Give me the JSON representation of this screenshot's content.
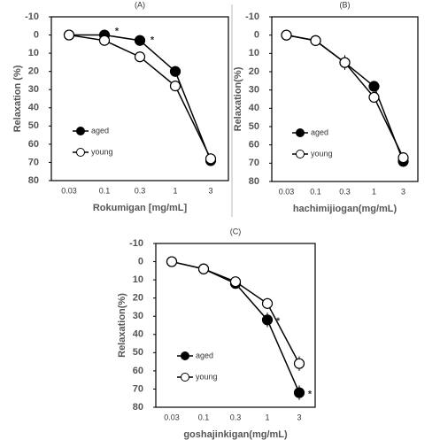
{
  "chart_data": [
    {
      "type": "line",
      "title": "(A)",
      "y_label": "Relaxation (%)",
      "x_label": "Rokumigan [mg/mL]",
      "categories": [
        "0.03",
        "0.1",
        "0.3",
        "1",
        "3"
      ],
      "ylim": [
        80,
        -10
      ],
      "yticks": [
        -10,
        0,
        10,
        20,
        30,
        40,
        50,
        60,
        70,
        80
      ],
      "series": [
        {
          "name": "aged",
          "color": "#000000",
          "values": [
            0,
            0,
            3,
            20,
            69
          ],
          "errors": [
            1,
            1,
            2,
            3,
            3
          ]
        },
        {
          "name": "young",
          "color": "#ffffff",
          "values": [
            0,
            3,
            12,
            28,
            68
          ],
          "errors": [
            1,
            1,
            2,
            2,
            3
          ]
        }
      ],
      "annotations": [
        "*",
        "*"
      ]
    },
    {
      "type": "line",
      "title": "(B)",
      "y_label": "Relaxation(%)",
      "x_label": "hachimijiogan(mg/mL)",
      "categories": [
        "0.03",
        "0.1",
        "0.3",
        "1",
        "3"
      ],
      "ylim": [
        80,
        -10
      ],
      "yticks": [
        -10,
        0,
        10,
        20,
        30,
        40,
        50,
        60,
        70,
        80
      ],
      "series": [
        {
          "name": "aged",
          "color": "#000000",
          "values": [
            0,
            3,
            15,
            28,
            69
          ],
          "errors": [
            1,
            1,
            3,
            2,
            3
          ]
        },
        {
          "name": "young",
          "color": "#ffffff",
          "values": [
            0,
            3,
            15,
            34,
            67
          ],
          "errors": [
            1,
            1,
            4,
            3,
            3
          ]
        }
      ],
      "annotations": []
    },
    {
      "type": "line",
      "title": "(C)",
      "y_label": "Relaxation(%)",
      "x_label": "goshajinkigan(mg/mL)",
      "categories": [
        "0.03",
        "0.1",
        "0.3",
        "1",
        "3"
      ],
      "ylim": [
        80,
        -10
      ],
      "yticks": [
        -10,
        0,
        10,
        20,
        30,
        40,
        50,
        60,
        70,
        80
      ],
      "series": [
        {
          "name": "aged",
          "color": "#000000",
          "values": [
            0,
            4,
            12,
            32,
            72
          ],
          "errors": [
            1,
            1,
            2,
            4,
            4
          ]
        },
        {
          "name": "young",
          "color": "#ffffff",
          "values": [
            0,
            4,
            11,
            23,
            56
          ],
          "errors": [
            1,
            1,
            2,
            3,
            4
          ]
        }
      ],
      "annotations": [
        "*",
        "*"
      ]
    }
  ]
}
